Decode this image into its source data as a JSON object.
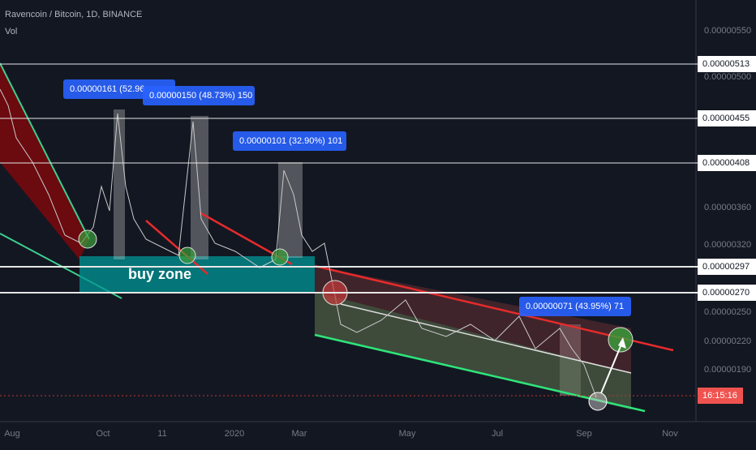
{
  "header": {
    "title": "Ravencoin / Bitcoin, 1D, BINANCE",
    "indicator": "Vol"
  },
  "price_axis": {
    "labels": [
      "0.00000550",
      "0.00000500",
      "0.00000360",
      "0.00000320",
      "0.00000250",
      "0.00000220",
      "0.00000190"
    ],
    "levels": [
      "0.00000513",
      "0.00000455",
      "0.00000408",
      "0.00000297",
      "0.00000270"
    ],
    "clock": "16:15:16"
  },
  "time_axis": {
    "labels": [
      "Aug",
      "Oct",
      "11",
      "2020",
      "Mar",
      "May",
      "Jul",
      "Sep",
      "Nov"
    ]
  },
  "annotations": {
    "measures": [
      "0.00000161 (52.96",
      "0.00000150 (48.73%) 150",
      "0.00000101 (32.90%) 101",
      "0.00000071 (43.95%) 71"
    ],
    "zone_label": "buy zone"
  }
}
